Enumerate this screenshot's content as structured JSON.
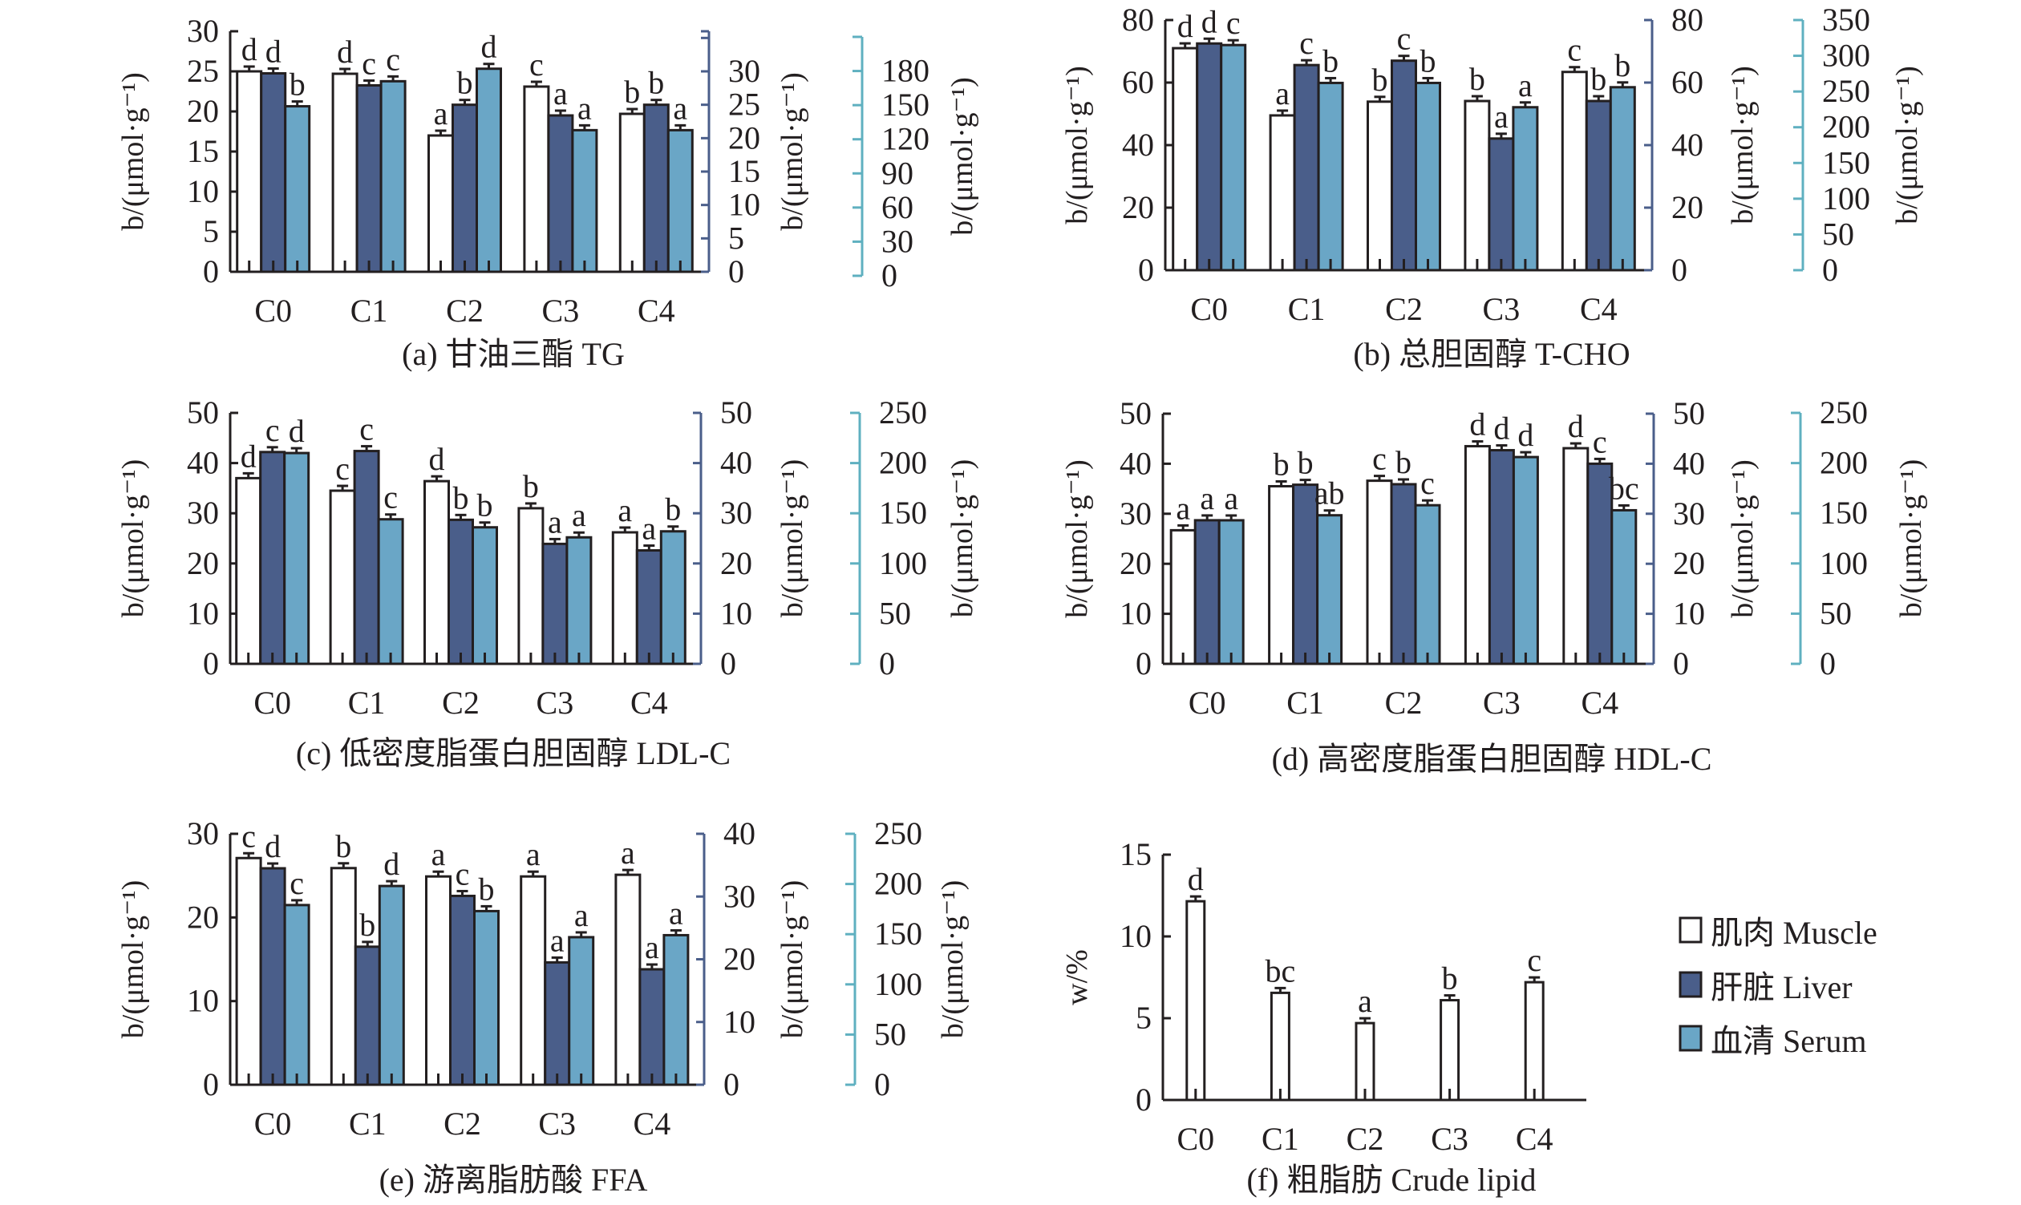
{
  "figure": {
    "legend": [
      {
        "key": "muscle",
        "label": "肌肉 Muscle",
        "color": "#ffffff"
      },
      {
        "key": "liver",
        "label": "肝脏 Liver",
        "color": "#4a5e8a"
      },
      {
        "key": "serum",
        "label": "血清 Serum",
        "color": "#6aa6c6"
      }
    ],
    "colors": {
      "axis": "#231f20",
      "liver_axis": "#4a5e8a",
      "serum_axis": "#5fb0c0"
    }
  },
  "chart_data": [
    {
      "id": "a",
      "type": "bar",
      "title": "(a) 甘油三酯 TG",
      "categories": [
        "C0",
        "C1",
        "C2",
        "C3",
        "C4"
      ],
      "ylabel": "b/(μmol·g⁻¹)",
      "axes": {
        "muscle": {
          "range": [
            0,
            30
          ],
          "ticks": [
            0,
            5,
            10,
            15,
            20,
            25,
            30
          ],
          "label": "b/(μmol·g⁻¹)"
        },
        "liver": {
          "range": [
            0,
            36
          ],
          "ticks": [
            0,
            5,
            10,
            15,
            20,
            25,
            30
          ],
          "label": "b/(μmol·g⁻¹)"
        },
        "serum": {
          "range": [
            0,
            210
          ],
          "ticks": [
            0,
            30,
            60,
            90,
            120,
            150,
            180
          ],
          "label": "b/(μmol·g⁻¹)"
        }
      },
      "series": [
        {
          "name": "muscle",
          "values": [
            25.0,
            24.7,
            17.0,
            23.1,
            19.7
          ],
          "letters": [
            "d",
            "d",
            "a",
            "c",
            "b"
          ]
        },
        {
          "name": "liver",
          "values": [
            29.7,
            27.9,
            25.0,
            23.4,
            25.0
          ],
          "letters": [
            "d",
            "c",
            "b",
            "a",
            "b"
          ]
        },
        {
          "name": "serum",
          "values": [
            149,
            171,
            182,
            128,
            128
          ],
          "letters": [
            "b",
            "c",
            "d",
            "a",
            "a"
          ]
        }
      ]
    },
    {
      "id": "b",
      "type": "bar",
      "title": "(b) 总胆固醇  T-CHO",
      "categories": [
        "C0",
        "C1",
        "C2",
        "C3",
        "C4"
      ],
      "ylabel": "b/(μmol·g⁻¹)",
      "axes": {
        "muscle": {
          "range": [
            0,
            80
          ],
          "ticks": [
            0,
            20,
            40,
            60,
            80
          ],
          "label": "b/(μmol·g⁻¹)"
        },
        "liver": {
          "range": [
            0,
            80
          ],
          "ticks": [
            0,
            20,
            40,
            60,
            80
          ],
          "label": "b/(μmol·g⁻¹)"
        },
        "serum": {
          "range": [
            0,
            350
          ],
          "ticks": [
            0,
            50,
            100,
            150,
            200,
            250,
            300,
            350
          ],
          "label": "b/(μmol·g⁻¹)"
        }
      },
      "series": [
        {
          "name": "muscle",
          "values": [
            71.0,
            49.5,
            53.9,
            54.1,
            63.4
          ],
          "letters": [
            "d",
            "a",
            "b",
            "b",
            "c"
          ]
        },
        {
          "name": "liver",
          "values": [
            72.5,
            65.6,
            67.0,
            42.1,
            54.1
          ],
          "letters": [
            "d",
            "c",
            "c",
            "a",
            "b"
          ]
        },
        {
          "name": "serum",
          "values": [
            315,
            262,
            262,
            228,
            256
          ],
          "letters": [
            "c",
            "b",
            "b",
            "a",
            "b"
          ]
        }
      ]
    },
    {
      "id": "c",
      "type": "bar",
      "title": "(c) 低密度脂蛋白胆固醇 LDL-C",
      "categories": [
        "C0",
        "C1",
        "C2",
        "C3",
        "C4"
      ],
      "ylabel": "b/(μmol·g⁻¹)",
      "axes": {
        "muscle": {
          "range": [
            0,
            50
          ],
          "ticks": [
            0,
            10,
            20,
            30,
            40,
            50
          ],
          "label": "b/(μmol·g⁻¹)"
        },
        "liver": {
          "range": [
            0,
            50
          ],
          "ticks": [
            0,
            10,
            20,
            30,
            40,
            50
          ],
          "label": "b/(μmol·g⁻¹)"
        },
        "serum": {
          "range": [
            0,
            250
          ],
          "ticks": [
            0,
            50,
            100,
            150,
            200,
            250
          ],
          "label": "b/(μmol·g⁻¹)"
        }
      },
      "series": [
        {
          "name": "muscle",
          "values": [
            37.0,
            34.5,
            36.4,
            31.0,
            26.2
          ],
          "letters": [
            "d",
            "c",
            "d",
            "b",
            "a"
          ]
        },
        {
          "name": "liver",
          "values": [
            42.2,
            42.4,
            28.7,
            23.9,
            22.6
          ],
          "letters": [
            "c",
            "c",
            "b",
            "a",
            "a"
          ]
        },
        {
          "name": "serum",
          "values": [
            210,
            144,
            136,
            126,
            132
          ],
          "letters": [
            "d",
            "c",
            "b",
            "a",
            "b"
          ]
        }
      ]
    },
    {
      "id": "d",
      "type": "bar",
      "title": "(d) 高密度脂蛋白胆固醇 HDL-C",
      "categories": [
        "C0",
        "C1",
        "C2",
        "C3",
        "C4"
      ],
      "ylabel": "b/(μmol·g⁻¹)",
      "axes": {
        "muscle": {
          "range": [
            0,
            50
          ],
          "ticks": [
            0,
            10,
            20,
            30,
            40,
            50
          ],
          "label": "b/(μmol·g⁻¹)"
        },
        "liver": {
          "range": [
            0,
            50
          ],
          "ticks": [
            0,
            10,
            20,
            30,
            40,
            50
          ],
          "label": "b/(μmol·g⁻¹)"
        },
        "serum": {
          "range": [
            0,
            250
          ],
          "ticks": [
            0,
            50,
            100,
            150,
            200,
            250
          ],
          "label": "b/(μmol·g⁻¹)"
        }
      },
      "series": [
        {
          "name": "muscle",
          "values": [
            26.7,
            35.5,
            36.6,
            43.5,
            43.1
          ],
          "letters": [
            "a",
            "b",
            "c",
            "d",
            "d"
          ]
        },
        {
          "name": "liver",
          "values": [
            28.7,
            35.8,
            35.9,
            42.7,
            40.0
          ],
          "letters": [
            "a",
            "b",
            "b",
            "d",
            "c"
          ]
        },
        {
          "name": "serum",
          "values": [
            143,
            148,
            158,
            206,
            153
          ],
          "letters": [
            "a",
            "ab",
            "c",
            "d",
            "bc"
          ]
        }
      ]
    },
    {
      "id": "e",
      "type": "bar",
      "title": "(e) 游离脂肪酸  FFA",
      "categories": [
        "C0",
        "C1",
        "C2",
        "C3",
        "C4"
      ],
      "ylabel": "b/(μmol·g⁻¹)",
      "axes": {
        "muscle": {
          "range": [
            0,
            30
          ],
          "ticks": [
            0,
            10,
            20,
            30
          ],
          "label": "b/(μmol·g⁻¹)"
        },
        "liver": {
          "range": [
            0,
            40
          ],
          "ticks": [
            0,
            10,
            20,
            30,
            40
          ],
          "label": "b/(μmol·g⁻¹)"
        },
        "serum": {
          "range": [
            0,
            250
          ],
          "ticks": [
            0,
            50,
            100,
            150,
            200,
            250
          ],
          "label": "b/(μmol·g⁻¹)"
        }
      },
      "series": [
        {
          "name": "muscle",
          "values": [
            27.1,
            25.9,
            24.9,
            24.9,
            25.1
          ],
          "letters": [
            "c",
            "b",
            "a",
            "a",
            "a"
          ]
        },
        {
          "name": "liver",
          "values": [
            34.5,
            22.0,
            30.1,
            19.5,
            18.4
          ],
          "letters": [
            "d",
            "b",
            "c",
            "a",
            "a"
          ]
        },
        {
          "name": "serum",
          "values": [
            179,
            198,
            173,
            147,
            149
          ],
          "letters": [
            "c",
            "d",
            "b",
            "a",
            "a"
          ]
        }
      ]
    },
    {
      "id": "f",
      "type": "bar",
      "title": "(f) 粗脂肪  Crude lipid",
      "categories": [
        "C0",
        "C1",
        "C2",
        "C3",
        "C4"
      ],
      "ylabel": "w/%",
      "axes": {
        "muscle": {
          "range": [
            0,
            15
          ],
          "ticks": [
            0,
            5,
            10,
            15
          ],
          "label": "w/%"
        }
      },
      "series": [
        {
          "name": "muscle",
          "values": [
            12.15,
            6.55,
            4.7,
            6.1,
            7.2
          ],
          "letters": [
            "d",
            "bc",
            "a",
            "b",
            "c"
          ]
        }
      ]
    }
  ]
}
